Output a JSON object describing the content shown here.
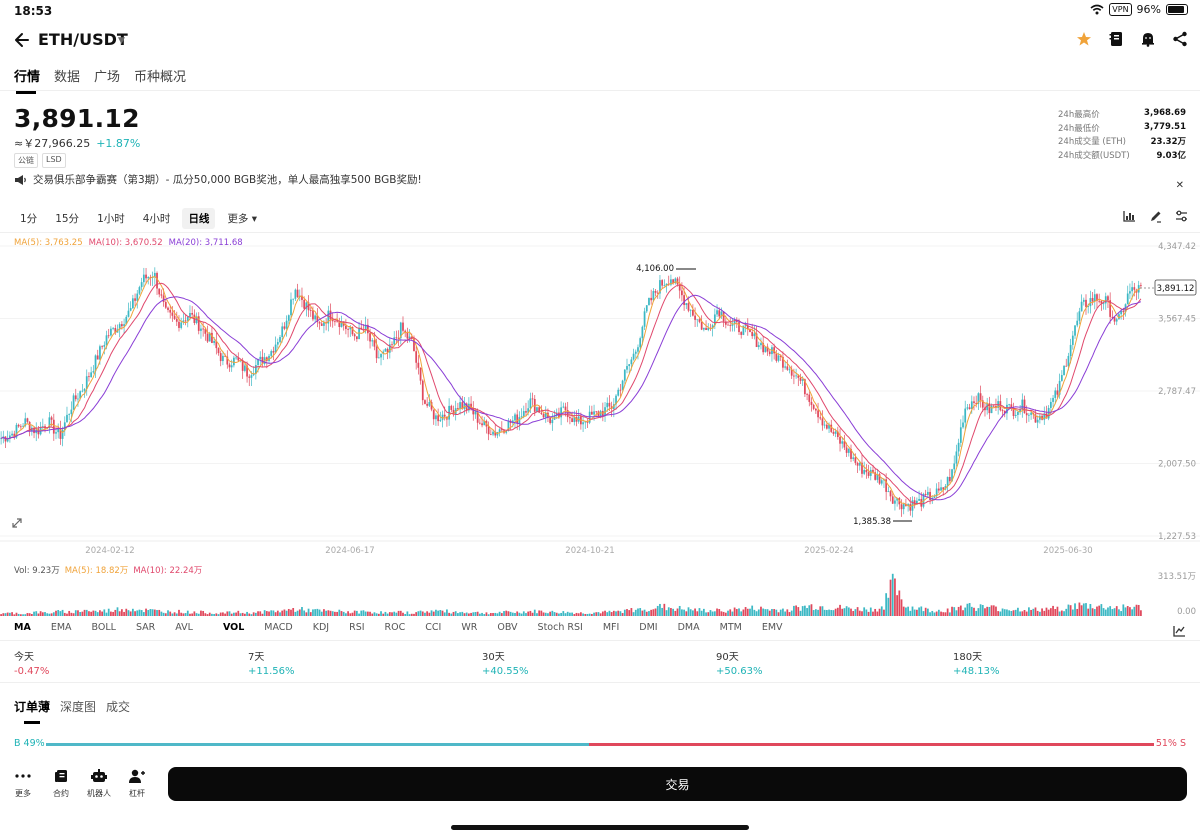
{
  "status": {
    "time": "18:53",
    "vpn": "VPN",
    "battery": "96%"
  },
  "header": {
    "pair": "ETH/USDT"
  },
  "nav_tabs": [
    "行情",
    "数据",
    "广场",
    "币种概况"
  ],
  "ticker": {
    "price": "3,891.12",
    "fiat": "≈￥27,966.25",
    "change": "+1.87%",
    "tags": [
      "公链",
      "LSD"
    ]
  },
  "stats": [
    {
      "label": "24h最高价",
      "value": "3,968.69"
    },
    {
      "label": "24h最低价",
      "value": "3,779.51"
    },
    {
      "label": "24h成交量 (ETH)",
      "value": "23.32万"
    },
    {
      "label": "24h成交额(USDT)",
      "value": "9.03亿"
    }
  ],
  "notice": "交易俱乐部争霸赛（第3期）- 瓜分50,000 BGB奖池，单人最高独享500 BGB奖励!",
  "intervals": [
    "1分",
    "15分",
    "1小时",
    "4小时",
    "日线",
    "更多"
  ],
  "active_interval": "日线",
  "ma_legend": [
    {
      "label": "MA(5): 3,763.25",
      "color": "#f0a33a"
    },
    {
      "label": "MA(10): 3,670.52",
      "color": "#e0486c"
    },
    {
      "label": "MA(20): 3,711.68",
      "color": "#8a3ed6"
    }
  ],
  "vol_legend": [
    {
      "label": "Vol: 9.23万",
      "color": "#555555"
    },
    {
      "label": "MA(5): 18.82万",
      "color": "#f0a33a"
    },
    {
      "label": "MA(10): 22.24万",
      "color": "#e0486c"
    }
  ],
  "chart_data": {
    "type": "candlestick",
    "y_ticks": [
      "4,347.42",
      "3,567.45",
      "2,787.47",
      "2,007.50",
      "1,227.53"
    ],
    "ylim": [
      1227.53,
      4347.42
    ],
    "x_ticks": [
      "2024-02-12",
      "2024-06-17",
      "2024-10-21",
      "2025-02-24",
      "2025-06-30"
    ],
    "annotations": {
      "high": "4,106.00",
      "low": "1,385.38",
      "last": "3,891.12"
    },
    "price_path": [
      2280,
      2330,
      2460,
      2350,
      2460,
      2300,
      2640,
      2830,
      3100,
      3380,
      3500,
      3650,
      3980,
      4060,
      3620,
      3520,
      3610,
      3480,
      3300,
      3100,
      3120,
      2980,
      3100,
      3220,
      3460,
      3900,
      3700,
      3480,
      3620,
      3520,
      3380,
      3450,
      3140,
      3200,
      3460,
      3300,
      2680,
      2500,
      2550,
      2650,
      2580,
      2420,
      2340,
      2420,
      2500,
      2680,
      2560,
      2450,
      2600,
      2440,
      2500,
      2560,
      2620,
      2950,
      3220,
      3700,
      3920,
      4010,
      3800,
      3600,
      3420,
      3680,
      3500,
      3460,
      3360,
      3250,
      3160,
      3060,
      2900,
      2680,
      2450,
      2300,
      2150,
      1970,
      1900,
      1830,
      1620,
      1560,
      1580,
      1650,
      1700,
      1920,
      2600,
      2720,
      2580,
      2640,
      2580,
      2630,
      2500,
      2560,
      2800,
      3300,
      3700,
      3790,
      3750,
      3500,
      3850,
      3891
    ],
    "volume_axis": [
      "313.51万",
      "0.00"
    ],
    "volume_path": [
      3,
      4,
      3,
      5,
      4,
      6,
      5,
      8,
      6,
      7,
      9,
      10,
      8,
      7,
      6,
      6,
      5,
      5,
      4,
      4,
      5,
      4,
      5,
      6,
      7,
      9,
      8,
      7,
      6,
      6,
      5,
      6,
      5,
      4,
      5,
      4,
      6,
      7,
      6,
      5,
      5,
      4,
      4,
      5,
      5,
      6,
      6,
      5,
      5,
      4,
      4,
      5,
      5,
      7,
      8,
      10,
      12,
      11,
      9,
      8,
      7,
      7,
      8,
      9,
      10,
      9,
      8,
      9,
      11,
      13,
      12,
      11,
      10,
      9,
      9,
      10,
      45,
      12,
      10,
      8,
      7,
      9,
      14,
      12,
      11,
      10,
      9,
      9,
      8,
      9,
      10,
      12,
      14,
      13,
      12,
      11,
      12,
      11
    ]
  },
  "indicators": [
    "MA",
    "EMA",
    "BOLL",
    "SAR",
    "AVL",
    "VOL",
    "MACD",
    "KDJ",
    "RSI",
    "ROC",
    "CCI",
    "WR",
    "OBV",
    "Stoch RSI",
    "MFI",
    "DMI",
    "DMA",
    "MTM",
    "EMV"
  ],
  "active_indicators": [
    "MA",
    "VOL"
  ],
  "performance": [
    {
      "name": "今天",
      "pct": "-0.47%",
      "dir": "neg"
    },
    {
      "name": "7天",
      "pct": "+11.56%",
      "dir": "pos"
    },
    {
      "name": "30天",
      "pct": "+40.55%",
      "dir": "pos"
    },
    {
      "name": "90天",
      "pct": "+50.63%",
      "dir": "pos"
    },
    {
      "name": "180天",
      "pct": "+48.13%",
      "dir": "pos"
    }
  ],
  "book_tabs": [
    "订单薄",
    "深度图",
    "成交"
  ],
  "ratio": {
    "buy_label": "B 49%",
    "sell_label": "51% S",
    "buy": 0.49,
    "sell": 0.51
  },
  "bottom_nav": [
    "更多",
    "合约",
    "机器人",
    "杠杆"
  ],
  "trade_label": "交易"
}
